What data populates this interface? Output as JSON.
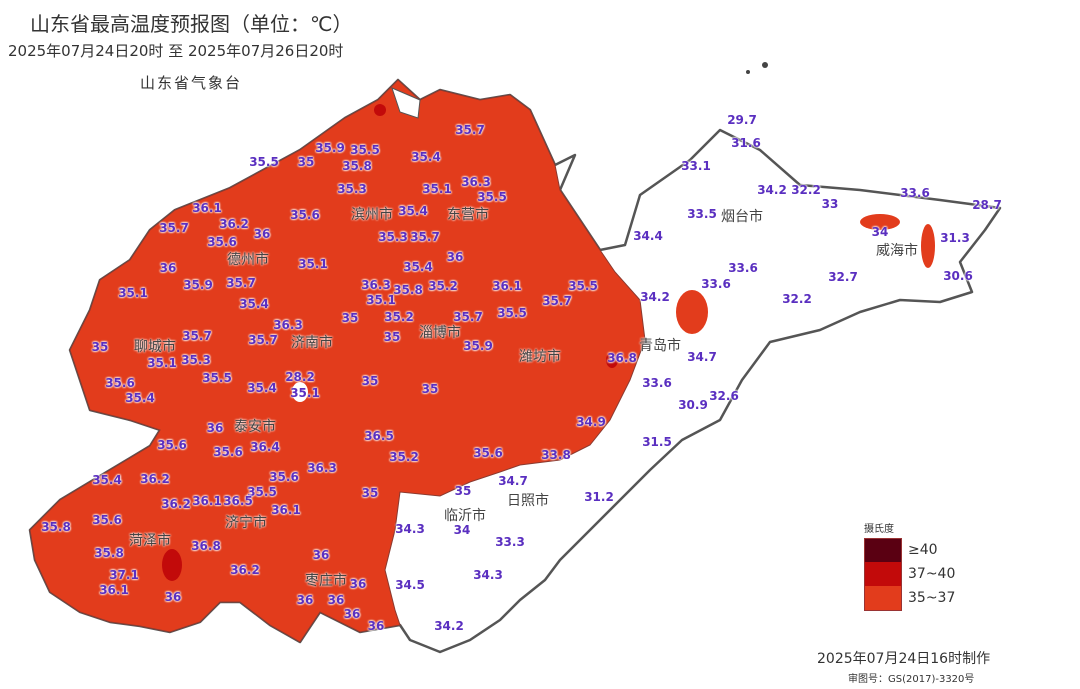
{
  "header": {
    "title": "山东省最高温度预报图（单位：℃）",
    "period": "2025年07月24日20时  至  2025年07月26日20时",
    "agency": "山东省气象台"
  },
  "legend": {
    "title": "摄氏度",
    "items": [
      {
        "label": "≥40",
        "color": "#5a0012"
      },
      {
        "label": "37~40",
        "color": "#c20a0a"
      },
      {
        "label": "35~37",
        "color": "#e23c1c"
      }
    ]
  },
  "colors": {
    "below35": "#ffffff",
    "border": "#555555",
    "station_text": "#5a2fc0"
  },
  "footer": {
    "made": "2025年07月24日16时制作",
    "review": "审图号：GS(2017)-3320号"
  },
  "cities": [
    "滨州市",
    "德州市",
    "聊城市",
    "济南市",
    "淄博市",
    "东营市",
    "潍坊市",
    "青岛市",
    "烟台市",
    "威海市",
    "日照市",
    "临沂市",
    "泰安市",
    "济宁市",
    "菏泽市",
    "枣庄市"
  ],
  "stations": [
    "29.7",
    "31.6",
    "33.1",
    "33.5",
    "34.2",
    "32.2",
    "33",
    "33.6",
    "28.7",
    "34",
    "31.3",
    "30.6",
    "34.4",
    "33.6",
    "33.6",
    "32.7",
    "34.2",
    "32.2",
    "34.7",
    "33.6",
    "30.9",
    "32.6",
    "31.5",
    "34.9",
    "33.8",
    "31.2",
    "34.7",
    "35",
    "34.3",
    "34",
    "33.3",
    "34.3",
    "34.5",
    "34.2",
    "36.8",
    "35.7",
    "35.9",
    "35.5",
    "35.5",
    "35",
    "35.8",
    "35.4",
    "36.3",
    "35.5",
    "35.3",
    "35.1",
    "36.1",
    "36.2",
    "35.6",
    "35.4",
    "35.7",
    "35.6",
    "36",
    "35.3",
    "35.7",
    "36",
    "35.9",
    "35.7",
    "35.1",
    "36",
    "35.4",
    "35.1",
    "35.4",
    "36.3",
    "35.8",
    "35.1",
    "35.2",
    "36.1",
    "35.5",
    "35.7",
    "36.3",
    "35",
    "35.2",
    "35.7",
    "35.5",
    "35.7",
    "35.7",
    "35",
    "35",
    "35.1",
    "35.3",
    "35.9",
    "35.5",
    "35.6",
    "35.4",
    "35.4",
    "28.2",
    "35.1",
    "35",
    "35",
    "36",
    "36.5",
    "35.6",
    "35.6",
    "36.4",
    "36.3",
    "35.2",
    "35.6",
    "35.4",
    "36.2",
    "35.6",
    "35.5",
    "35",
    "36.2",
    "36.1",
    "36.5",
    "36.1",
    "35.8",
    "35.6",
    "35.8",
    "36.8",
    "36",
    "36.2",
    "37.1",
    "36",
    "36.1",
    "36",
    "36",
    "36",
    "36",
    "36"
  ]
}
